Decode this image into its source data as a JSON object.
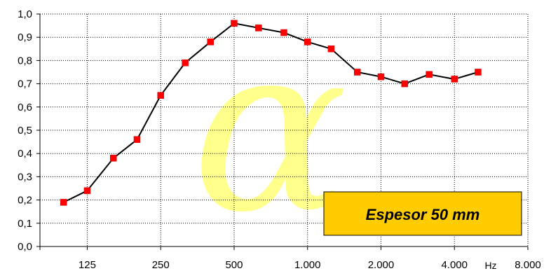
{
  "chart_data": {
    "type": "line",
    "title": "",
    "xlabel": "",
    "ylabel": "",
    "x_unit": "Hz",
    "x_scale": "log2",
    "xlim": [
      80,
      8000
    ],
    "ylim": [
      0,
      1.0
    ],
    "grid": true,
    "x_ticks": [
      125,
      250,
      500,
      1000,
      2000,
      4000,
      8000
    ],
    "x_tick_labels": [
      "125",
      "250",
      "500",
      "1.000",
      "2.000",
      "4.000",
      "8.000"
    ],
    "y_ticks": [
      0.0,
      0.1,
      0.2,
      0.3,
      0.4,
      0.5,
      0.6,
      0.7,
      0.8,
      0.9,
      1.0
    ],
    "y_tick_labels": [
      "0,0",
      "0,1",
      "0,2",
      "0,3",
      "0,4",
      "0,5",
      "0,6",
      "0,7",
      "0,8",
      "0,9",
      "1,0"
    ],
    "series": [
      {
        "x": [
          100,
          125,
          160,
          200,
          250,
          315,
          400,
          500,
          630,
          800,
          1000,
          1250,
          1600,
          2000,
          2500,
          3150,
          4000,
          5000
        ],
        "y": [
          0.19,
          0.24,
          0.38,
          0.46,
          0.65,
          0.79,
          0.88,
          0.96,
          0.94,
          0.92,
          0.88,
          0.85,
          0.75,
          0.73,
          0.7,
          0.74,
          0.72,
          0.75
        ],
        "line_color": "#000000",
        "marker_color": "#ff0000"
      }
    ],
    "annotation": {
      "text": "Espesor 50 mm",
      "box_color": "#ffcc00"
    },
    "watermark": {
      "glyph": "α",
      "color": "#ffff66"
    }
  }
}
